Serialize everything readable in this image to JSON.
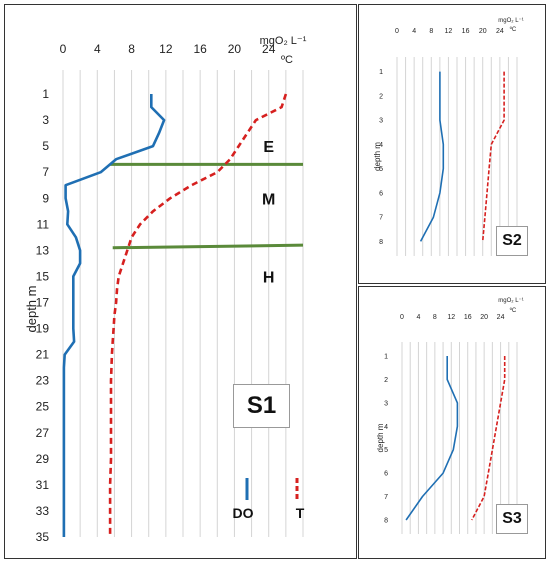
{
  "chart_data": [
    {
      "id": "S1",
      "type": "line",
      "panel_label": "S1",
      "ylabel": "depth  m",
      "unit_top": "mgO₂ L⁻¹",
      "unit_bottom": "ºC",
      "x_ticks": [
        0,
        4,
        8,
        12,
        16,
        20,
        24
      ],
      "xlim": [
        0,
        28
      ],
      "y_ticks": [
        1,
        3,
        5,
        7,
        9,
        11,
        13,
        15,
        17,
        19,
        21,
        23,
        25,
        27,
        29,
        31,
        33,
        35
      ],
      "ylim": [
        0,
        35
      ],
      "grid": "vertical",
      "zones": [
        {
          "label": "E",
          "x": 24,
          "y": 5
        },
        {
          "label": "M",
          "x": 24,
          "y": 9
        },
        {
          "label": "H",
          "x": 24,
          "y": 15
        }
      ],
      "boundaries": [
        {
          "x": [
            5.5,
            28
          ],
          "y": [
            6.4,
            6.4
          ]
        },
        {
          "x": [
            5.8,
            28
          ],
          "y": [
            12.8,
            12.6
          ]
        }
      ],
      "legend": {
        "do_label": "DO",
        "t_label": "T",
        "position": "bottom-right"
      },
      "series": [
        {
          "name": "DO",
          "color": "#1f6fb3",
          "dash": "solid",
          "points": [
            [
              10.3,
              1
            ],
            [
              10.3,
              2
            ],
            [
              11.8,
              3
            ],
            [
              11.2,
              4
            ],
            [
              10.5,
              5
            ],
            [
              6.2,
              6
            ],
            [
              4.4,
              7
            ],
            [
              0.3,
              8
            ],
            [
              0.3,
              9
            ],
            [
              0.6,
              10
            ],
            [
              0.5,
              11
            ],
            [
              1.5,
              12
            ],
            [
              2.0,
              13
            ],
            [
              2.0,
              14
            ],
            [
              1.2,
              15
            ],
            [
              1.2,
              16
            ],
            [
              1.2,
              17
            ],
            [
              1.2,
              18
            ],
            [
              1.2,
              19
            ],
            [
              1.3,
              20
            ],
            [
              0.2,
              21
            ],
            [
              0.1,
              22
            ],
            [
              0.1,
              23
            ],
            [
              0.1,
              25
            ],
            [
              0.1,
              27
            ],
            [
              0.1,
              29
            ],
            [
              0.1,
              31
            ],
            [
              0.1,
              33
            ],
            [
              0.1,
              35
            ]
          ]
        },
        {
          "name": "T",
          "color": "#d6201f",
          "dash": "dashed",
          "points": [
            [
              26.0,
              1
            ],
            [
              25.5,
              2
            ],
            [
              22.5,
              3
            ],
            [
              21.5,
              4
            ],
            [
              20.5,
              5
            ],
            [
              19.5,
              6
            ],
            [
              18.0,
              7
            ],
            [
              15.0,
              8
            ],
            [
              12.5,
              9
            ],
            [
              10.5,
              10
            ],
            [
              9.0,
              11
            ],
            [
              8.0,
              12
            ],
            [
              7.5,
              13
            ],
            [
              7.0,
              14
            ],
            [
              6.5,
              15
            ],
            [
              6.3,
              16
            ],
            [
              6.2,
              17
            ],
            [
              6.0,
              18
            ],
            [
              5.9,
              19
            ],
            [
              5.8,
              20
            ],
            [
              5.7,
              21
            ],
            [
              5.6,
              23
            ],
            [
              5.6,
              25
            ],
            [
              5.6,
              27
            ],
            [
              5.6,
              29
            ],
            [
              5.5,
              31
            ],
            [
              5.5,
              33
            ],
            [
              5.5,
              35
            ]
          ]
        }
      ]
    },
    {
      "id": "S2",
      "type": "line",
      "panel_label": "S2",
      "ylabel": "depth  m",
      "unit_top": "mgO₂ L⁻¹",
      "unit_bottom": "ºC",
      "x_ticks": [
        0,
        4,
        8,
        12,
        16,
        20,
        24
      ],
      "xlim": [
        0,
        28
      ],
      "y_ticks": [
        1,
        2,
        3,
        4,
        5,
        6,
        7,
        8
      ],
      "ylim": [
        0.4,
        8.6
      ],
      "grid": "vertical",
      "series": [
        {
          "name": "DO",
          "color": "#1f6fb3",
          "dash": "solid",
          "points": [
            [
              10.0,
              1
            ],
            [
              10.0,
              2
            ],
            [
              10.0,
              3
            ],
            [
              10.8,
              4
            ],
            [
              10.8,
              5
            ],
            [
              10.0,
              6
            ],
            [
              8.5,
              7
            ],
            [
              5.5,
              8
            ]
          ]
        },
        {
          "name": "T",
          "color": "#d6201f",
          "dash": "dashed",
          "points": [
            [
              25.0,
              1
            ],
            [
              25.0,
              2
            ],
            [
              25.0,
              3
            ],
            [
              22.0,
              4
            ],
            [
              21.5,
              5
            ],
            [
              21.0,
              6
            ],
            [
              20.5,
              7
            ],
            [
              20.0,
              8
            ]
          ]
        }
      ]
    },
    {
      "id": "S3",
      "type": "line",
      "panel_label": "S3",
      "ylabel": "depth  m",
      "unit_top": "mgO₂ L⁻¹",
      "unit_bottom": "ºC",
      "x_ticks": [
        0,
        4,
        8,
        12,
        16,
        20,
        24
      ],
      "xlim": [
        0,
        28
      ],
      "y_ticks": [
        1,
        2,
        3,
        4,
        5,
        6,
        7,
        8
      ],
      "ylim": [
        0.4,
        8.6
      ],
      "grid": "vertical",
      "series": [
        {
          "name": "DO",
          "color": "#1f6fb3",
          "dash": "solid",
          "points": [
            [
              11.0,
              1
            ],
            [
              11.0,
              2
            ],
            [
              13.5,
              3
            ],
            [
              13.5,
              4
            ],
            [
              12.5,
              5
            ],
            [
              10.0,
              6
            ],
            [
              5.0,
              7
            ],
            [
              1.0,
              8
            ]
          ]
        },
        {
          "name": "T",
          "color": "#d6201f",
          "dash": "dashed",
          "points": [
            [
              25.0,
              1
            ],
            [
              25.0,
              2
            ],
            [
              24.0,
              3
            ],
            [
              23.0,
              4
            ],
            [
              22.0,
              5
            ],
            [
              21.0,
              6
            ],
            [
              20.0,
              7
            ],
            [
              17.0,
              8
            ]
          ]
        }
      ]
    }
  ]
}
